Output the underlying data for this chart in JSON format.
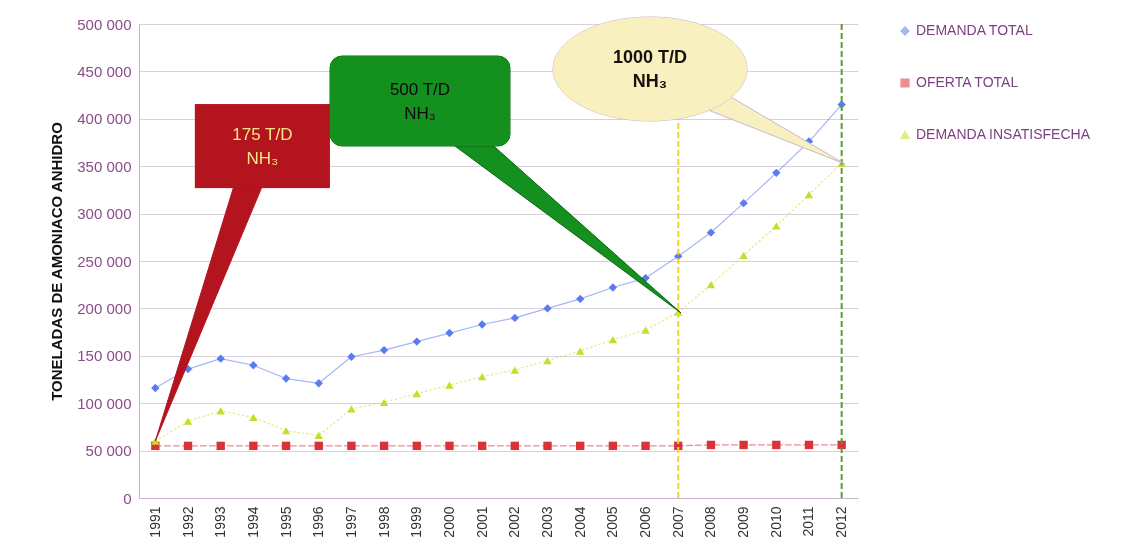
{
  "chart_data": {
    "type": "line",
    "ylabel": "TONELADAS DE AMONIACO ANHIDRO",
    "x": [
      1991,
      1992,
      1993,
      1994,
      1995,
      1996,
      1997,
      1998,
      1999,
      2000,
      2001,
      2002,
      2003,
      2004,
      2005,
      2006,
      2007,
      2008,
      2009,
      2010,
      2011,
      2012
    ],
    "series": [
      {
        "name": "DEMANDA TOTAL",
        "color": "#5b7cf0",
        "marker": "diamond",
        "line_style": "solid",
        "values": [
          116000,
          136000,
          147000,
          140000,
          126000,
          121000,
          149000,
          156000,
          165000,
          174000,
          183000,
          190000,
          200000,
          210000,
          222000,
          232000,
          255000,
          280000,
          311000,
          343000,
          376000,
          415000
        ]
      },
      {
        "name": "OFERTA TOTAL",
        "color": "#d9323a",
        "marker": "square",
        "line_style": "dashed",
        "values": [
          55000,
          55000,
          55000,
          55000,
          55000,
          55000,
          55000,
          55000,
          55000,
          55000,
          55000,
          55000,
          55000,
          55000,
          55000,
          55000,
          55000,
          56000,
          56000,
          56000,
          56000,
          56000
        ]
      },
      {
        "name": "DEMANDA INSATISFECHA",
        "color": "#c8dc2a",
        "marker": "triangle",
        "line_style": "dotted",
        "values": [
          60000,
          81000,
          92000,
          85000,
          71000,
          66000,
          94000,
          101000,
          110000,
          119000,
          128000,
          135000,
          145000,
          155000,
          167000,
          177000,
          196000,
          225000,
          256000,
          287000,
          320000,
          353000
        ]
      }
    ],
    "xlim": [
      1990.5,
      2012.5
    ],
    "xticks": [
      1991,
      1992,
      1993,
      1994,
      1995,
      1996,
      1997,
      1998,
      1999,
      2000,
      2001,
      2002,
      2003,
      2004,
      2005,
      2006,
      2007,
      2008,
      2009,
      2010,
      2011,
      2012
    ],
    "ylim": [
      0,
      500000
    ],
    "yticks": [
      0,
      {
        "value": 50000,
        "label": "50 000"
      },
      {
        "value": 100000,
        "label": "100 000"
      },
      {
        "value": 150000,
        "label": "150 000"
      },
      {
        "value": 200000,
        "label": "200 000"
      },
      {
        "value": 250000,
        "label": "250 000"
      },
      {
        "value": 300000,
        "label": "300 000"
      },
      {
        "value": 350000,
        "label": "350 000"
      },
      {
        "value": 400000,
        "label": "400 000"
      },
      {
        "value": 450000,
        "label": "450 000"
      },
      {
        "value": 500000,
        "label": "500 000"
      }
    ],
    "grid": "y",
    "legend": "right",
    "ref_lines": [
      {
        "axis": "x",
        "value": 2007,
        "color": "#f5d327",
        "line_style": "dashed"
      },
      {
        "axis": "x",
        "value": 2012,
        "color": "#5a9a3a",
        "line_style": "dashed"
      }
    ],
    "annotations": [
      {
        "text": "175 T/D NH₃",
        "x": 1991,
        "y": 60000
      },
      "500 T/D NH₃",
      "1000 T/D NH₃"
    ]
  }
}
